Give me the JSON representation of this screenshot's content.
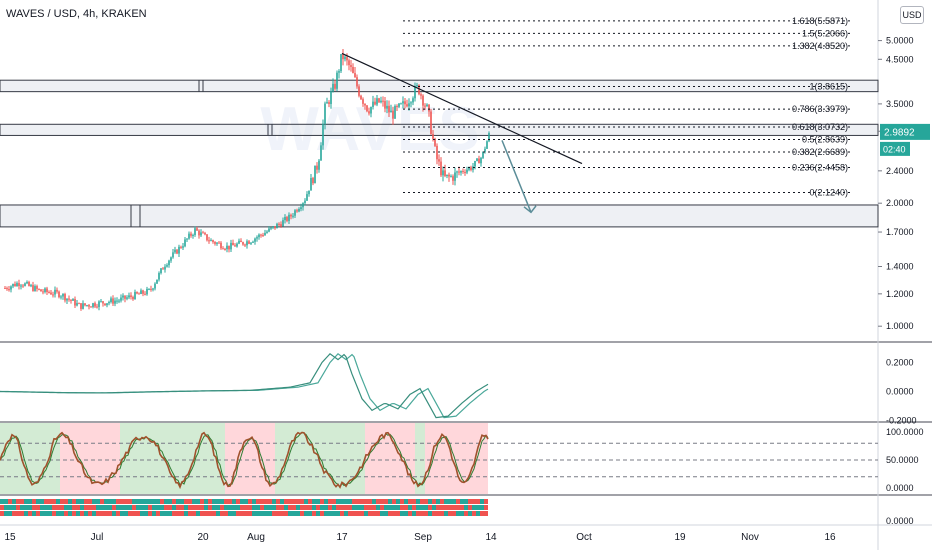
{
  "header": {
    "title": "WAVES / USD, 4h, KRAKEN",
    "currency_button": "USD"
  },
  "watermark": "WAVES",
  "price_badge": {
    "value": "2.9892",
    "countdown": "02:40",
    "color": "#26a69a"
  },
  "colors": {
    "up": "#26a69a",
    "down": "#ef5350",
    "trend_line": "#131722",
    "projection_arrow": "#5b8d98",
    "zone_fill": "#e0e3eb",
    "zone_border": "#363a45",
    "osc_line1": "#388e7d",
    "osc_line2": "#4aa89a",
    "stoch_line": "#a0522d",
    "stoch_line2": "#2e7d32",
    "bg_green": "#c8e6c9",
    "bg_red": "#ffcdd2"
  },
  "chart_data": [
    {
      "type": "line",
      "pane": "price",
      "y_scale": "log",
      "ylim": [
        0.9,
        5.7
      ],
      "y_ticks": [
        "5.0000",
        "4.5000",
        "3.5000",
        "3.0000",
        "2.4000",
        "2.0000",
        "1.7000",
        "1.4000",
        "1.2000",
        "1.0000"
      ],
      "x_ticks": [
        "15",
        "Jul",
        "20",
        "Aug",
        "17",
        "Sep",
        "14",
        "Oct",
        "19",
        "Nov",
        "16"
      ],
      "series": [
        {
          "x": [
            "15",
            "Jul",
            "20",
            "Aug",
            "17",
            "Sep",
            "14"
          ],
          "values": [
            1.24,
            1.15,
            1.65,
            1.8,
            4.5,
            3.4,
            2.99
          ]
        }
      ],
      "fib_levels": [
        {
          "label": "1.618(5.5871)",
          "value": 5.5871
        },
        {
          "label": "1.5(5.2066)",
          "value": 5.2066
        },
        {
          "label": "1.382(4.8520)",
          "value": 4.852
        },
        {
          "label": "1(3.8615)",
          "value": 3.8615
        },
        {
          "label": "0.786(3.3979)",
          "value": 3.3979
        },
        {
          "label": "0.618(3.0732)",
          "value": 3.0732
        },
        {
          "label": "0.5(2.8639)",
          "value": 2.8639
        },
        {
          "label": "0.382(2.6689)",
          "value": 2.6689
        },
        {
          "label": "0.236(2.4458)",
          "value": 2.4458
        },
        {
          "label": "0(2.1240)",
          "value": 2.124
        }
      ],
      "zones": [
        {
          "from": 3.75,
          "to": 4.0
        },
        {
          "from": 2.93,
          "to": 3.12
        },
        {
          "from": 1.75,
          "to": 1.98
        }
      ]
    },
    {
      "type": "line",
      "pane": "oscillator",
      "ylim": [
        -0.25,
        0.3
      ],
      "y_ticks": [
        "0.2000",
        "0.0000",
        "-0.2000"
      ],
      "series": [
        {
          "x": [
            "15",
            "Jul",
            "20",
            "Aug",
            "17",
            "Sep",
            "14"
          ],
          "values": [
            0.0,
            -0.01,
            0.0,
            0.01,
            0.25,
            -0.12,
            0.05
          ]
        }
      ]
    },
    {
      "type": "line",
      "pane": "stochastic",
      "ylim": [
        -10,
        110
      ],
      "y_ticks": [
        "100.0000",
        "50.0000",
        "0.0000"
      ],
      "guides": [
        80,
        50,
        20
      ],
      "series": [
        {
          "x": [
            "15",
            "Jul",
            "20",
            "Aug",
            "17",
            "Sep",
            "14"
          ],
          "values": [
            60,
            20,
            85,
            30,
            90,
            10,
            75
          ]
        }
      ]
    },
    {
      "type": "heatmap",
      "pane": "strip",
      "y_ticks": [
        "0.0000"
      ]
    }
  ]
}
